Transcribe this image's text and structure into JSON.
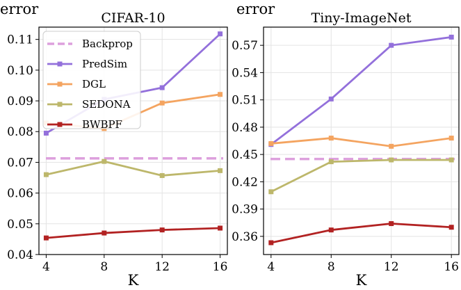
{
  "chart_data": [
    {
      "type": "line",
      "title": "CIFAR-10",
      "ylabel": "error",
      "xlabel": "K",
      "x": [
        4,
        8,
        12,
        16
      ],
      "xticks": [
        "4",
        "8",
        "12",
        "16"
      ],
      "ylim": [
        0.04,
        0.114
      ],
      "yticks": [
        "0.04",
        "0.05",
        "0.06",
        "0.07",
        "0.08",
        "0.09",
        "0.10",
        "0.11"
      ],
      "ytick_values": [
        0.04,
        0.05,
        0.06,
        0.07,
        0.08,
        0.09,
        0.1,
        0.11
      ],
      "grid": true,
      "legend": "upper-left",
      "series": [
        {
          "name": "Backprop",
          "color": "#DDA0DD",
          "style": "dashed",
          "marker": "none",
          "values": [
            0.0713,
            0.0713,
            0.0713,
            0.0713
          ]
        },
        {
          "name": "PredSim",
          "color": "#9370DB",
          "style": "solid",
          "marker": "square",
          "values": [
            0.0795,
            0.0905,
            0.0943,
            0.1118
          ]
        },
        {
          "name": "DGL",
          "color": "#F4A460",
          "style": "solid",
          "marker": "square",
          "values": [
            0.0828,
            0.081,
            0.0893,
            0.0921
          ]
        },
        {
          "name": "SEDONA",
          "color": "#BDB76B",
          "style": "solid",
          "marker": "square",
          "values": [
            0.066,
            0.0703,
            0.0657,
            0.0673
          ]
        },
        {
          "name": "BWBPF",
          "color": "#B22222",
          "style": "solid",
          "marker": "square",
          "values": [
            0.0454,
            0.047,
            0.048,
            0.0486
          ]
        }
      ]
    },
    {
      "type": "line",
      "title": "Tiny-ImageNet",
      "ylabel": "error",
      "xlabel": "K",
      "x": [
        4,
        8,
        12,
        16
      ],
      "xticks": [
        "4",
        "8",
        "12",
        "16"
      ],
      "ylim": [
        0.34,
        0.59
      ],
      "yticks": [
        "0.36",
        "0.39",
        "0.42",
        "0.45",
        "0.48",
        "0.51",
        "0.54",
        "0.57"
      ],
      "ytick_values": [
        0.36,
        0.39,
        0.42,
        0.45,
        0.48,
        0.51,
        0.54,
        0.57
      ],
      "grid": true,
      "series": [
        {
          "name": "Backprop",
          "color": "#DDA0DD",
          "style": "dashed",
          "marker": "none",
          "values": [
            0.445,
            0.445,
            0.445,
            0.445
          ]
        },
        {
          "name": "PredSim",
          "color": "#9370DB",
          "style": "solid",
          "marker": "square",
          "values": [
            0.461,
            0.511,
            0.57,
            0.579
          ]
        },
        {
          "name": "DGL",
          "color": "#F4A460",
          "style": "solid",
          "marker": "square",
          "values": [
            0.462,
            0.468,
            0.459,
            0.468
          ]
        },
        {
          "name": "SEDONA",
          "color": "#BDB76B",
          "style": "solid",
          "marker": "square",
          "values": [
            0.409,
            0.442,
            0.444,
            0.444
          ]
        },
        {
          "name": "BWBPF",
          "color": "#B22222",
          "style": "solid",
          "marker": "square",
          "values": [
            0.353,
            0.367,
            0.374,
            0.37
          ]
        }
      ]
    }
  ]
}
